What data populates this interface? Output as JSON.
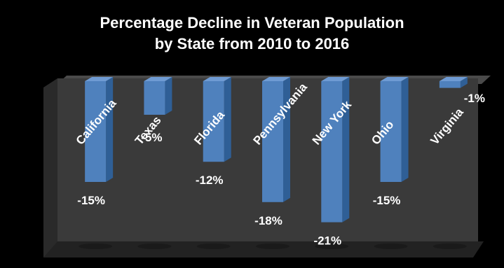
{
  "chart_data": {
    "type": "bar",
    "title": "Percentage Decline in Veteran Population by State from 2010 to 2016",
    "title_lines": [
      "Percentage Decline in Veteran Population",
      "by State from 2010 to 2016"
    ],
    "categories": [
      "California",
      "Texas",
      "Florida",
      "Pennsylvania",
      "New York",
      "Ohio",
      "Virginia"
    ],
    "values": [
      -15,
      -5,
      -12,
      -18,
      -21,
      -15,
      -1
    ],
    "value_labels": [
      "-15%",
      "-5%",
      "-12%",
      "-18%",
      "-21%",
      "-15%",
      "-1%"
    ],
    "xlabel": "",
    "ylabel": "",
    "ylim": [
      -21,
      0
    ],
    "grid": false,
    "legend": "none",
    "style": "3d-column",
    "colors": {
      "background": "#000000",
      "wall": "#3a3a3a",
      "bar_front": "#4f81bd",
      "bar_side": "#2f5f96",
      "bar_top": "#6f9bd3",
      "text": "#ffffff"
    }
  }
}
